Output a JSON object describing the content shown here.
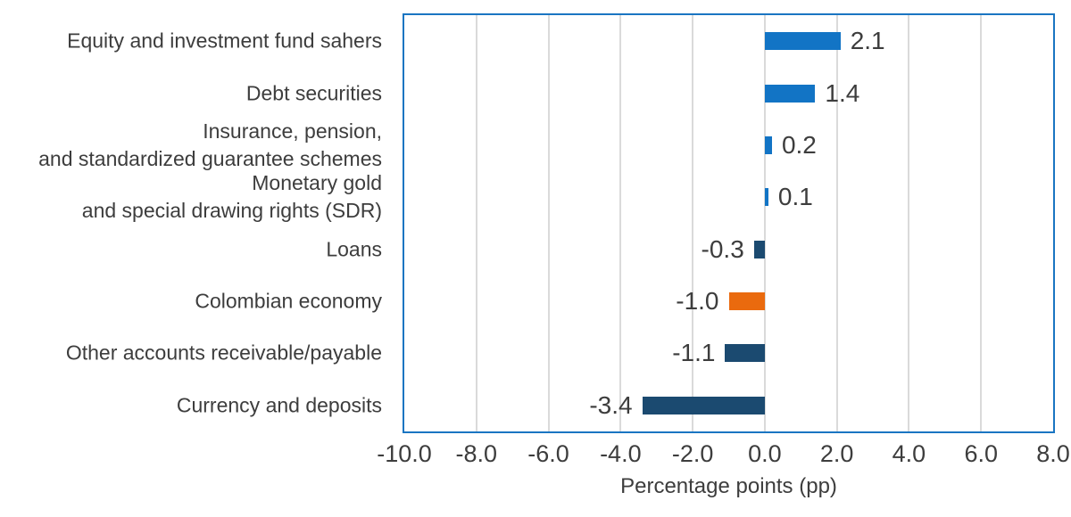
{
  "colors": {
    "positive_bar": "#1274c5",
    "negative_bar": "#1b4a70",
    "highlight_bar": "#ea6a0e",
    "plot_border": "#1a75c2",
    "gridline": "#dadada",
    "text": "#3d3d3d"
  },
  "chart_data": {
    "type": "bar",
    "orientation": "horizontal",
    "title": "",
    "xlabel": "Percentage points (pp)",
    "ylabel": "",
    "xlim": [
      -10.0,
      8.0
    ],
    "grid": "vertical gridlines every 2.0 units",
    "legend": "none",
    "x_ticks": [
      -10.0,
      -8.0,
      -6.0,
      -4.0,
      -2.0,
      0.0,
      2.0,
      4.0,
      6.0,
      8.0
    ],
    "x_tick_labels": [
      "-10.0",
      "-8.0",
      "-6.0",
      "-4.0",
      "-2.0",
      "0.0",
      "2.0",
      "4.0",
      "6.0",
      "8.0"
    ],
    "categories": [
      "Equity and investment fund sahers",
      "Debt securities",
      "Insurance, pension, and standardized guarantee schemes",
      "Monetary gold and special drawing rights (SDR)",
      "Loans",
      "Colombian economy",
      "Other accounts receivable/payable",
      "Currency and deposits"
    ],
    "category_lines": [
      [
        "Equity and investment fund sahers"
      ],
      [
        "Debt securities"
      ],
      [
        "Insurance, pension,",
        "and standardized guarantee schemes"
      ],
      [
        "Monetary gold",
        "and special drawing rights (SDR)"
      ],
      [
        "Loans"
      ],
      [
        "Colombian economy"
      ],
      [
        "Other accounts receivable/payable"
      ],
      [
        "Currency and deposits"
      ]
    ],
    "values": [
      2.1,
      1.4,
      0.2,
      0.1,
      -0.3,
      -1.0,
      -1.1,
      -3.4
    ],
    "value_labels": [
      "2.1",
      "1.4",
      "0.2",
      "0.1",
      "-0.3",
      "-1.0",
      "-1.1",
      "-3.4"
    ],
    "bar_colors": [
      "#1274c5",
      "#1274c5",
      "#1274c5",
      "#1274c5",
      "#1b4a70",
      "#ea6a0e",
      "#1b4a70",
      "#1b4a70"
    ]
  }
}
